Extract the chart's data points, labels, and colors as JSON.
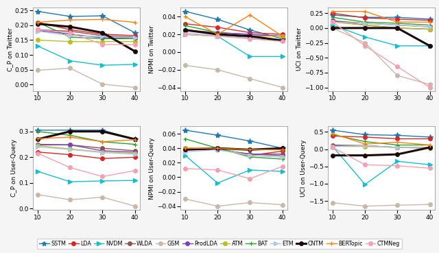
{
  "x": [
    10,
    20,
    30,
    40
  ],
  "models": [
    "SSTM",
    "LDA",
    "NVDM",
    "WLDA",
    "GSM",
    "ProdLDA",
    "ATM",
    "BAT",
    "ETM",
    "CNTM",
    "BERTopic",
    "CTMNeg"
  ],
  "colors": [
    "#1f77b4",
    "#d62728",
    "#17becf",
    "#8c564b",
    "#c8b8a8",
    "#7f3fbf",
    "#bcbd22",
    "#2ca02c",
    "#aec7e8",
    "#1a0a0a",
    "#ff7f0e",
    "#f4a0b0"
  ],
  "markers": [
    "*",
    "o",
    ">",
    "o",
    "o",
    "o",
    "o",
    "+",
    ">",
    "o",
    "+",
    "o"
  ],
  "subplot1_ylabel": "C_P on Twitter",
  "subplot1_data": [
    [
      0.247,
      0.23,
      0.232,
      0.175
    ],
    [
      0.21,
      0.185,
      0.17,
      0.165
    ],
    [
      0.13,
      0.08,
      0.065,
      0.068
    ],
    [
      0.185,
      0.18,
      0.165,
      0.16
    ],
    [
      0.048,
      0.055,
      0.001,
      -0.01
    ],
    [
      0.183,
      0.17,
      0.158,
      0.156
    ],
    [
      0.15,
      0.145,
      0.145,
      0.145
    ],
    [
      0.21,
      0.16,
      0.155,
      0.155
    ],
    [
      0.18,
      0.165,
      0.162,
      0.158
    ],
    [
      0.205,
      0.195,
      0.175,
      0.112
    ],
    [
      0.21,
      0.218,
      0.22,
      0.21
    ],
    [
      0.185,
      0.175,
      0.135,
      0.135
    ]
  ],
  "subplot2_ylabel": "NPMI on Twitter",
  "subplot2_data": [
    [
      0.046,
      0.037,
      0.025,
      0.015
    ],
    [
      0.032,
      0.028,
      0.022,
      0.02
    ],
    [
      0.02,
      0.018,
      -0.005,
      -0.005
    ],
    [
      0.025,
      0.022,
      0.02,
      0.018
    ],
    [
      -0.015,
      -0.02,
      -0.03,
      -0.04
    ],
    [
      0.024,
      0.022,
      0.02,
      0.018
    ],
    [
      0.02,
      0.018,
      0.018,
      0.018
    ],
    [
      0.03,
      0.022,
      0.015,
      0.013
    ],
    [
      0.022,
      0.018,
      0.016,
      0.013
    ],
    [
      0.025,
      0.02,
      0.018,
      0.013
    ],
    [
      0.04,
      0.02,
      0.042,
      0.018
    ],
    [
      0.02,
      0.018,
      0.015,
      0.012
    ]
  ],
  "subplot3_ylabel": "UCI on Twitter",
  "subplot3_data": [
    [
      0.22,
      0.18,
      0.18,
      0.15
    ],
    [
      0.25,
      0.17,
      0.15,
      0.13
    ],
    [
      0.05,
      -0.15,
      -0.3,
      -0.3
    ],
    [
      0.12,
      0.08,
      0.05,
      0.02
    ],
    [
      0.0,
      -0.25,
      -0.8,
      -0.95
    ],
    [
      0.12,
      0.05,
      0.0,
      -0.02
    ],
    [
      0.1,
      0.05,
      0.0,
      -0.02
    ],
    [
      0.18,
      0.1,
      0.08,
      0.05
    ],
    [
      0.1,
      0.08,
      0.05,
      0.02
    ],
    [
      0.0,
      0.0,
      0.0,
      -0.3
    ],
    [
      0.28,
      0.28,
      0.1,
      0.1
    ],
    [
      0.1,
      -0.3,
      -0.65,
      -1.0
    ]
  ],
  "subplot4_ylabel": "C_P on User-Query",
  "subplot4_data": [
    [
      0.305,
      0.305,
      0.305,
      0.27
    ],
    [
      0.22,
      0.21,
      0.195,
      0.2
    ],
    [
      0.145,
      0.105,
      0.108,
      0.11
    ],
    [
      0.248,
      0.248,
      0.235,
      0.225
    ],
    [
      0.055,
      0.035,
      0.045,
      0.01
    ],
    [
      0.25,
      0.248,
      0.225,
      0.22
    ],
    [
      0.245,
      0.232,
      0.22,
      0.215
    ],
    [
      0.3,
      0.285,
      0.26,
      0.25
    ],
    [
      0.24,
      0.23,
      0.218,
      0.212
    ],
    [
      0.27,
      0.3,
      0.3,
      0.27
    ],
    [
      0.272,
      0.278,
      0.26,
      0.268
    ],
    [
      0.215,
      0.16,
      0.125,
      0.148
    ]
  ],
  "subplot5_ylabel": "NPMI on User-Query",
  "subplot5_data": [
    [
      0.065,
      0.058,
      0.05,
      0.04
    ],
    [
      0.04,
      0.04,
      0.03,
      0.036
    ],
    [
      0.03,
      -0.008,
      0.01,
      0.008
    ],
    [
      0.038,
      0.038,
      0.032,
      0.032
    ],
    [
      -0.03,
      -0.04,
      -0.035,
      -0.038
    ],
    [
      0.038,
      0.038,
      0.032,
      0.03
    ],
    [
      0.04,
      0.04,
      0.03,
      0.028
    ],
    [
      0.053,
      0.04,
      0.028,
      0.025
    ],
    [
      0.035,
      0.038,
      0.03,
      0.028
    ],
    [
      0.038,
      0.04,
      0.038,
      0.04
    ],
    [
      0.04,
      0.04,
      0.038,
      0.038
    ],
    [
      0.012,
      0.01,
      -0.002,
      0.015
    ]
  ],
  "subplot6_ylabel": "UCI on User-Query",
  "subplot6_data": [
    [
      0.55,
      0.42,
      0.4,
      0.35
    ],
    [
      0.38,
      0.35,
      0.3,
      0.3
    ],
    [
      0.08,
      -1.02,
      -0.35,
      -0.45
    ],
    [
      0.12,
      0.1,
      0.05,
      0.03
    ],
    [
      -1.55,
      -1.65,
      -1.62,
      -1.6
    ],
    [
      0.1,
      0.1,
      0.05,
      0.05
    ],
    [
      0.08,
      0.08,
      0.05,
      0.05
    ],
    [
      0.42,
      0.22,
      0.12,
      0.12
    ],
    [
      0.08,
      0.1,
      0.05,
      0.05
    ],
    [
      -0.18,
      -0.18,
      -0.15,
      0.05
    ],
    [
      0.45,
      0.15,
      0.2,
      0.12
    ],
    [
      0.05,
      -0.45,
      -0.48,
      -0.55
    ]
  ],
  "bg_color": "#ffffff",
  "fig_bg_color": "#f5f5f5"
}
